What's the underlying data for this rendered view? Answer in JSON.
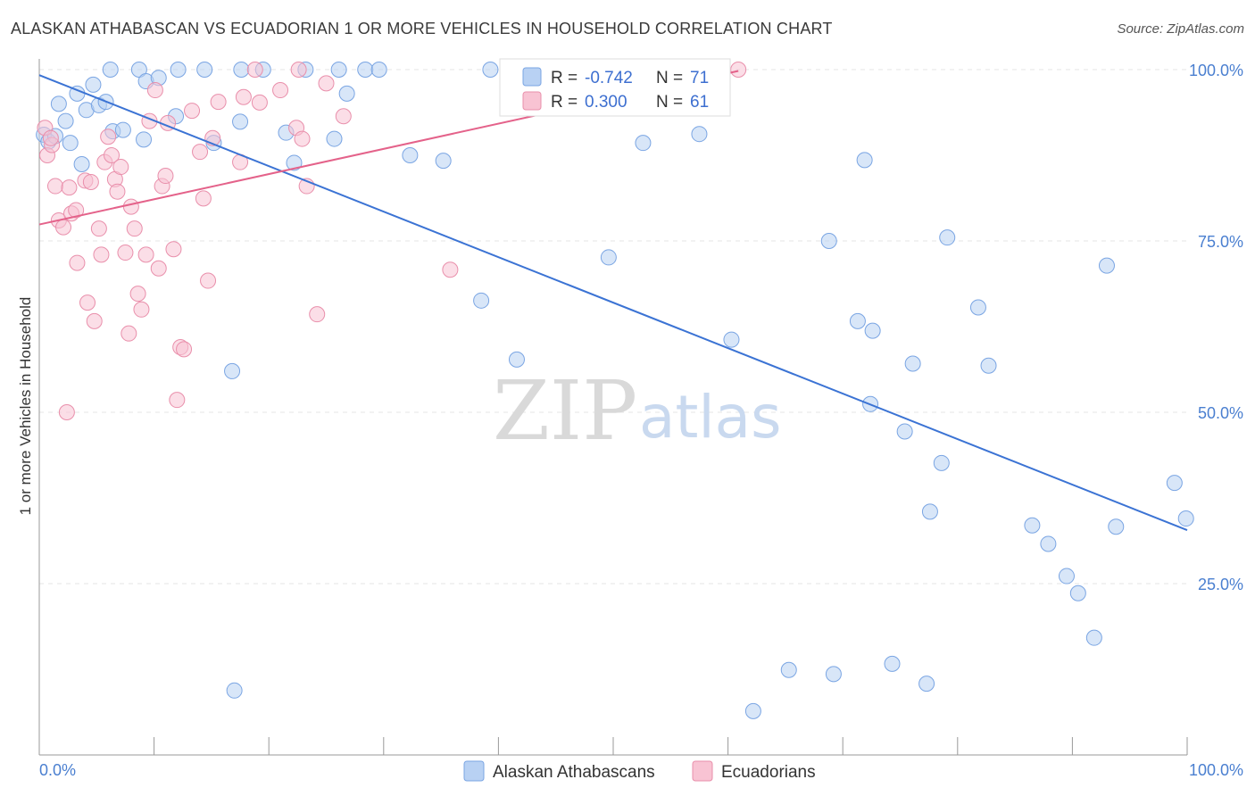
{
  "title": "ALASKAN ATHABASCAN VS ECUADORIAN 1 OR MORE VEHICLES IN HOUSEHOLD CORRELATION CHART",
  "source": "Source: ZipAtlas.com",
  "watermark": {
    "zip": "ZIP",
    "atlas": "atlas"
  },
  "legend": {
    "r_label": "R =",
    "n_label": "N =",
    "rows": [
      {
        "r": "-0.742",
        "n": "71",
        "fill": "#b8d1f3",
        "stroke": "#7aa5e3"
      },
      {
        "r": "0.300",
        "n": "61",
        "fill": "#f8c3d3",
        "stroke": "#e98fab"
      }
    ]
  },
  "bottom_legend": [
    {
      "label": "Alaskan Athabascans",
      "fill": "#b8d1f3",
      "stroke": "#7aa5e3"
    },
    {
      "label": "Ecuadorians",
      "fill": "#f8c3d3",
      "stroke": "#e98fab"
    }
  ],
  "chart_data": {
    "type": "scatter",
    "title": "ALASKAN ATHABASCAN VS ECUADORIAN 1 OR MORE VEHICLES IN HOUSEHOLD CORRELATION CHART",
    "xlabel": "",
    "ylabel": "1 or more Vehicles in Household",
    "xlim": [
      0,
      100
    ],
    "ylim": [
      0,
      100
    ],
    "x_tick_labels": [
      "0.0%",
      "100.0%"
    ],
    "y_tick_labels": [
      {
        "value": 100,
        "label": "100.0%"
      },
      {
        "value": 75,
        "label": "75.0%"
      },
      {
        "value": 50,
        "label": "50.0%"
      },
      {
        "value": 25,
        "label": "25.0%"
      }
    ],
    "grid": true,
    "legend_position": "top-center",
    "series": [
      {
        "name": "Alaskan Athabascans",
        "color": "#3b73d4",
        "fill": "#b8d1f3",
        "trend": {
          "x": [
            0,
            100
          ],
          "y": [
            99.2,
            32.8
          ]
        },
        "points": [
          [
            0.4,
            90.5
          ],
          [
            0.8,
            89.5
          ],
          [
            1.4,
            90.3
          ],
          [
            1.7,
            95
          ],
          [
            2.3,
            92.5
          ],
          [
            2.7,
            89.3
          ],
          [
            3.3,
            96.5
          ],
          [
            3.7,
            86.2
          ],
          [
            4.1,
            94.1
          ],
          [
            4.7,
            97.8
          ],
          [
            5.2,
            94.8
          ],
          [
            5.8,
            95.3
          ],
          [
            6.4,
            91
          ],
          [
            7.3,
            91.2
          ],
          [
            6.2,
            100
          ],
          [
            8.7,
            100
          ],
          [
            9.1,
            89.8
          ],
          [
            9.3,
            98.3
          ],
          [
            10.4,
            98.8
          ],
          [
            11.9,
            93.2
          ],
          [
            12.1,
            100
          ],
          [
            14.4,
            100
          ],
          [
            15.2,
            89.3
          ],
          [
            16.8,
            56
          ],
          [
            17.5,
            92.4
          ],
          [
            17.6,
            100
          ],
          [
            19.5,
            100
          ],
          [
            21.5,
            90.8
          ],
          [
            22.2,
            86.4
          ],
          [
            23.2,
            100
          ],
          [
            25.7,
            89.9
          ],
          [
            26.1,
            100
          ],
          [
            26.8,
            96.5
          ],
          [
            28.4,
            100
          ],
          [
            29.6,
            100
          ],
          [
            32.3,
            87.5
          ],
          [
            35.2,
            86.7
          ],
          [
            38.5,
            66.3
          ],
          [
            39.3,
            100
          ],
          [
            41.6,
            57.7
          ],
          [
            49.6,
            72.6
          ],
          [
            52.6,
            89.3
          ],
          [
            57.5,
            90.6
          ],
          [
            60.3,
            60.6
          ],
          [
            62.2,
            6.4
          ],
          [
            65.3,
            12.4
          ],
          [
            68.8,
            75
          ],
          [
            69.2,
            11.8
          ],
          [
            71.3,
            63.3
          ],
          [
            71.9,
            86.8
          ],
          [
            72.4,
            51.2
          ],
          [
            72.6,
            61.9
          ],
          [
            74.3,
            13.3
          ],
          [
            75.4,
            47.2
          ],
          [
            76.1,
            57.1
          ],
          [
            77.3,
            10.4
          ],
          [
            77.6,
            35.5
          ],
          [
            78.6,
            42.6
          ],
          [
            79.1,
            75.5
          ],
          [
            81.8,
            65.3
          ],
          [
            82.7,
            56.8
          ],
          [
            86.5,
            33.5
          ],
          [
            87.9,
            30.8
          ],
          [
            89.5,
            26.1
          ],
          [
            90.5,
            23.6
          ],
          [
            91.9,
            17.1
          ],
          [
            93,
            71.4
          ],
          [
            93.8,
            33.3
          ],
          [
            98.9,
            39.7
          ],
          [
            99.9,
            34.5
          ],
          [
            17,
            9.4
          ]
        ]
      },
      {
        "name": "Ecuadorians",
        "color": "#e4628a",
        "fill": "#f8c3d3",
        "trend": {
          "x": [
            0,
            60.9
          ],
          "y": [
            77.4,
            99.8
          ]
        },
        "points": [
          [
            0.5,
            91.5
          ],
          [
            0.7,
            87.5
          ],
          [
            1.1,
            89
          ],
          [
            1.4,
            83
          ],
          [
            1.7,
            78
          ],
          [
            2.1,
            77
          ],
          [
            2.4,
            50
          ],
          [
            2.6,
            82.8
          ],
          [
            2.8,
            79
          ],
          [
            3.2,
            79.5
          ],
          [
            3.3,
            71.8
          ],
          [
            4,
            83.8
          ],
          [
            4.2,
            66
          ],
          [
            4.5,
            83.6
          ],
          [
            4.8,
            63.3
          ],
          [
            5.2,
            76.8
          ],
          [
            5.4,
            73
          ],
          [
            5.7,
            86.5
          ],
          [
            6,
            90.2
          ],
          [
            6.3,
            87.5
          ],
          [
            6.6,
            84
          ],
          [
            6.8,
            82.2
          ],
          [
            7.1,
            85.8
          ],
          [
            7.5,
            73.3
          ],
          [
            7.8,
            61.5
          ],
          [
            8,
            80
          ],
          [
            8.3,
            76.8
          ],
          [
            8.6,
            67.3
          ],
          [
            8.9,
            65
          ],
          [
            9.3,
            73
          ],
          [
            9.6,
            92.5
          ],
          [
            10.1,
            97
          ],
          [
            10.4,
            71
          ],
          [
            10.7,
            83
          ],
          [
            11,
            84.5
          ],
          [
            11.2,
            92.2
          ],
          [
            11.7,
            73.8
          ],
          [
            12,
            51.8
          ],
          [
            12.3,
            59.5
          ],
          [
            12.6,
            59.2
          ],
          [
            13.3,
            94
          ],
          [
            14,
            88
          ],
          [
            14.3,
            81.2
          ],
          [
            14.7,
            69.2
          ],
          [
            15.1,
            90
          ],
          [
            15.6,
            95.3
          ],
          [
            17.5,
            86.5
          ],
          [
            17.8,
            96
          ],
          [
            18.8,
            100
          ],
          [
            19.2,
            95.2
          ],
          [
            21,
            97
          ],
          [
            22.4,
            91.5
          ],
          [
            22.6,
            100
          ],
          [
            22.9,
            89.9
          ],
          [
            23.3,
            83
          ],
          [
            24.2,
            64.3
          ],
          [
            25,
            98
          ],
          [
            26.5,
            93.2
          ],
          [
            35.8,
            70.8
          ],
          [
            60.9,
            100
          ],
          [
            1,
            90
          ]
        ]
      }
    ]
  }
}
